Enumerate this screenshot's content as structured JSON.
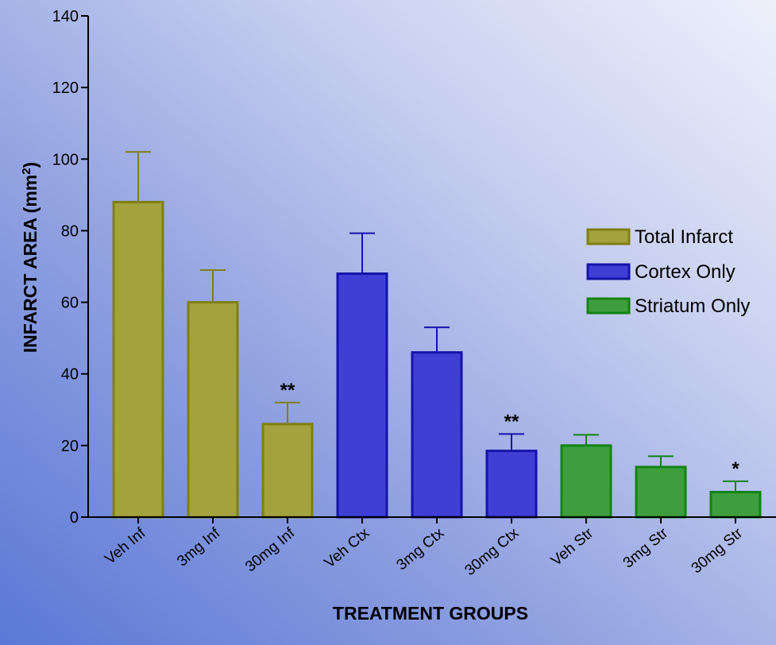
{
  "chart_data": {
    "type": "bar",
    "xlabel": "TREATMENT GROUPS",
    "ylabel": "INFARCT AREA (mm",
    "ylabel_sup": "2",
    "ylabel_close": ")",
    "ylim": [
      0,
      140
    ],
    "yticks": [
      0,
      20,
      40,
      60,
      80,
      100,
      120,
      140
    ],
    "grid": false,
    "legend_position": "right",
    "series": [
      {
        "name": "Total Infarct",
        "color": "#a2a23e",
        "stroke": "#7f7f10"
      },
      {
        "name": "Cortex Only",
        "color": "#3f3fd6",
        "stroke": "#1414a8"
      },
      {
        "name": "Striatum Only",
        "color": "#3e9e3e",
        "stroke": "#148214"
      }
    ],
    "bars": [
      {
        "label": "Veh Inf",
        "series": 0,
        "value": 88,
        "error": 14,
        "sig": ""
      },
      {
        "label": "3mg Inf",
        "series": 0,
        "value": 60,
        "error": 9,
        "sig": ""
      },
      {
        "label": "30mg Inf",
        "series": 0,
        "value": 26,
        "error": 6,
        "sig": "**"
      },
      {
        "label": "Veh Ctx",
        "series": 1,
        "value": 68,
        "error": 11.3,
        "sig": ""
      },
      {
        "label": "3mg Ctx",
        "series": 1,
        "value": 46,
        "error": 7,
        "sig": ""
      },
      {
        "label": "30mg Ctx",
        "series": 1,
        "value": 18.5,
        "error": 4.7,
        "sig": "**"
      },
      {
        "label": "Veh Str",
        "series": 2,
        "value": 20,
        "error": 3,
        "sig": ""
      },
      {
        "label": "3mg Str",
        "series": 2,
        "value": 14,
        "error": 3,
        "sig": ""
      },
      {
        "label": "30mg Str",
        "series": 2,
        "value": 7,
        "error": 3,
        "sig": "*"
      }
    ]
  }
}
